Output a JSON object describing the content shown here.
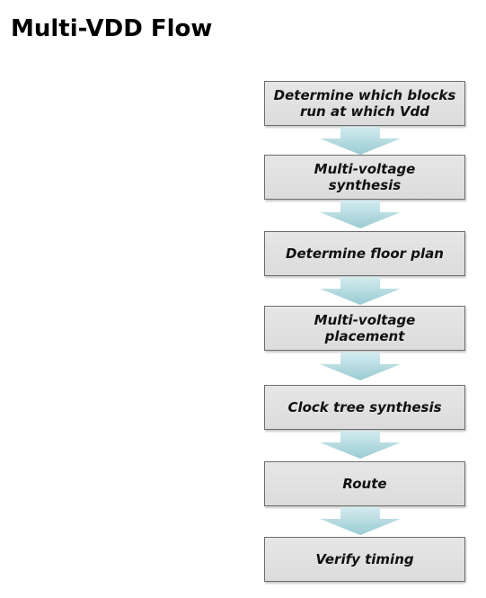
{
  "slide": {
    "title": "Multi-VDD Flow"
  },
  "flow": {
    "arrow_color": "#a9d3d9",
    "box_color": "#e2e2e2",
    "steps": [
      {
        "label": "Determine which blocks\nrun at which Vdd"
      },
      {
        "label": "Multi-voltage\nsynthesis"
      },
      {
        "label": "Determine floor plan"
      },
      {
        "label": "Multi-voltage\nplacement"
      },
      {
        "label": "Clock tree synthesis"
      },
      {
        "label": "Route"
      },
      {
        "label": "Verify timing"
      }
    ]
  }
}
